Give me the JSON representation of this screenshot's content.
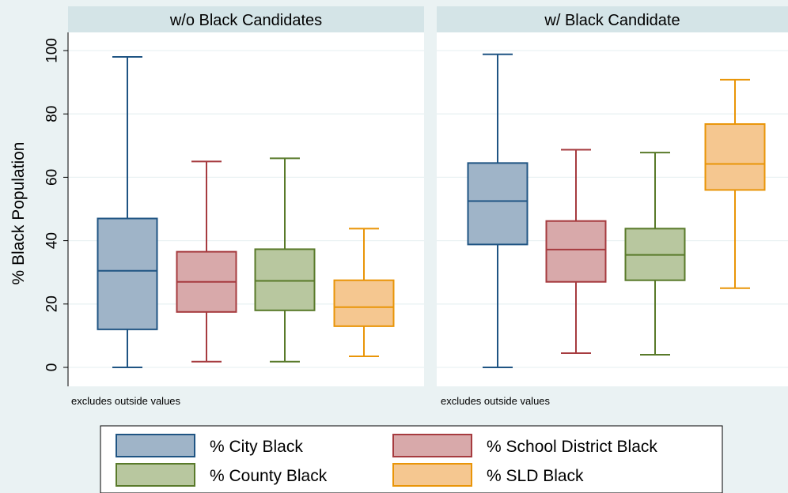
{
  "chart_data": {
    "type": "box",
    "ylabel": "% Black Population",
    "ylim": [
      0,
      100
    ],
    "yticks": [
      0,
      20,
      40,
      60,
      80,
      100
    ],
    "note": "excludes outside values",
    "series": [
      {
        "name": "% City Black",
        "color": "#9fb4c8",
        "stroke": "#1f5483"
      },
      {
        "name": "% School District Black",
        "color": "#d8a9aa",
        "stroke": "#a63b3f"
      },
      {
        "name": "% County Black",
        "color": "#b8c79f",
        "stroke": "#597a2a"
      },
      {
        "name": "% SLD Black",
        "color": "#f5c790",
        "stroke": "#e99508"
      }
    ],
    "panels": [
      {
        "title": "w/o  Black Candidates",
        "boxes": [
          {
            "min": 0,
            "q1": 12,
            "median": 30.5,
            "q3": 47,
            "max": 98
          },
          {
            "min": 1.8,
            "q1": 17.5,
            "median": 27,
            "q3": 36.5,
            "max": 65
          },
          {
            "min": 1.8,
            "q1": 18,
            "median": 27.3,
            "q3": 37.3,
            "max": 66
          },
          {
            "min": 3.5,
            "q1": 13,
            "median": 19,
            "q3": 27.5,
            "max": 43.8
          }
        ]
      },
      {
        "title": "w/ Black Candidate",
        "boxes": [
          {
            "min": 0,
            "q1": 38.8,
            "median": 52.5,
            "q3": 64.5,
            "max": 98.8
          },
          {
            "min": 4.5,
            "q1": 27,
            "median": 37.2,
            "q3": 46.2,
            "max": 68.7
          },
          {
            "min": 4,
            "q1": 27.5,
            "median": 35.5,
            "q3": 43.8,
            "max": 67.8
          },
          {
            "min": 25,
            "q1": 56,
            "median": 64.2,
            "q3": 76.8,
            "max": 90.8
          }
        ]
      }
    ]
  }
}
